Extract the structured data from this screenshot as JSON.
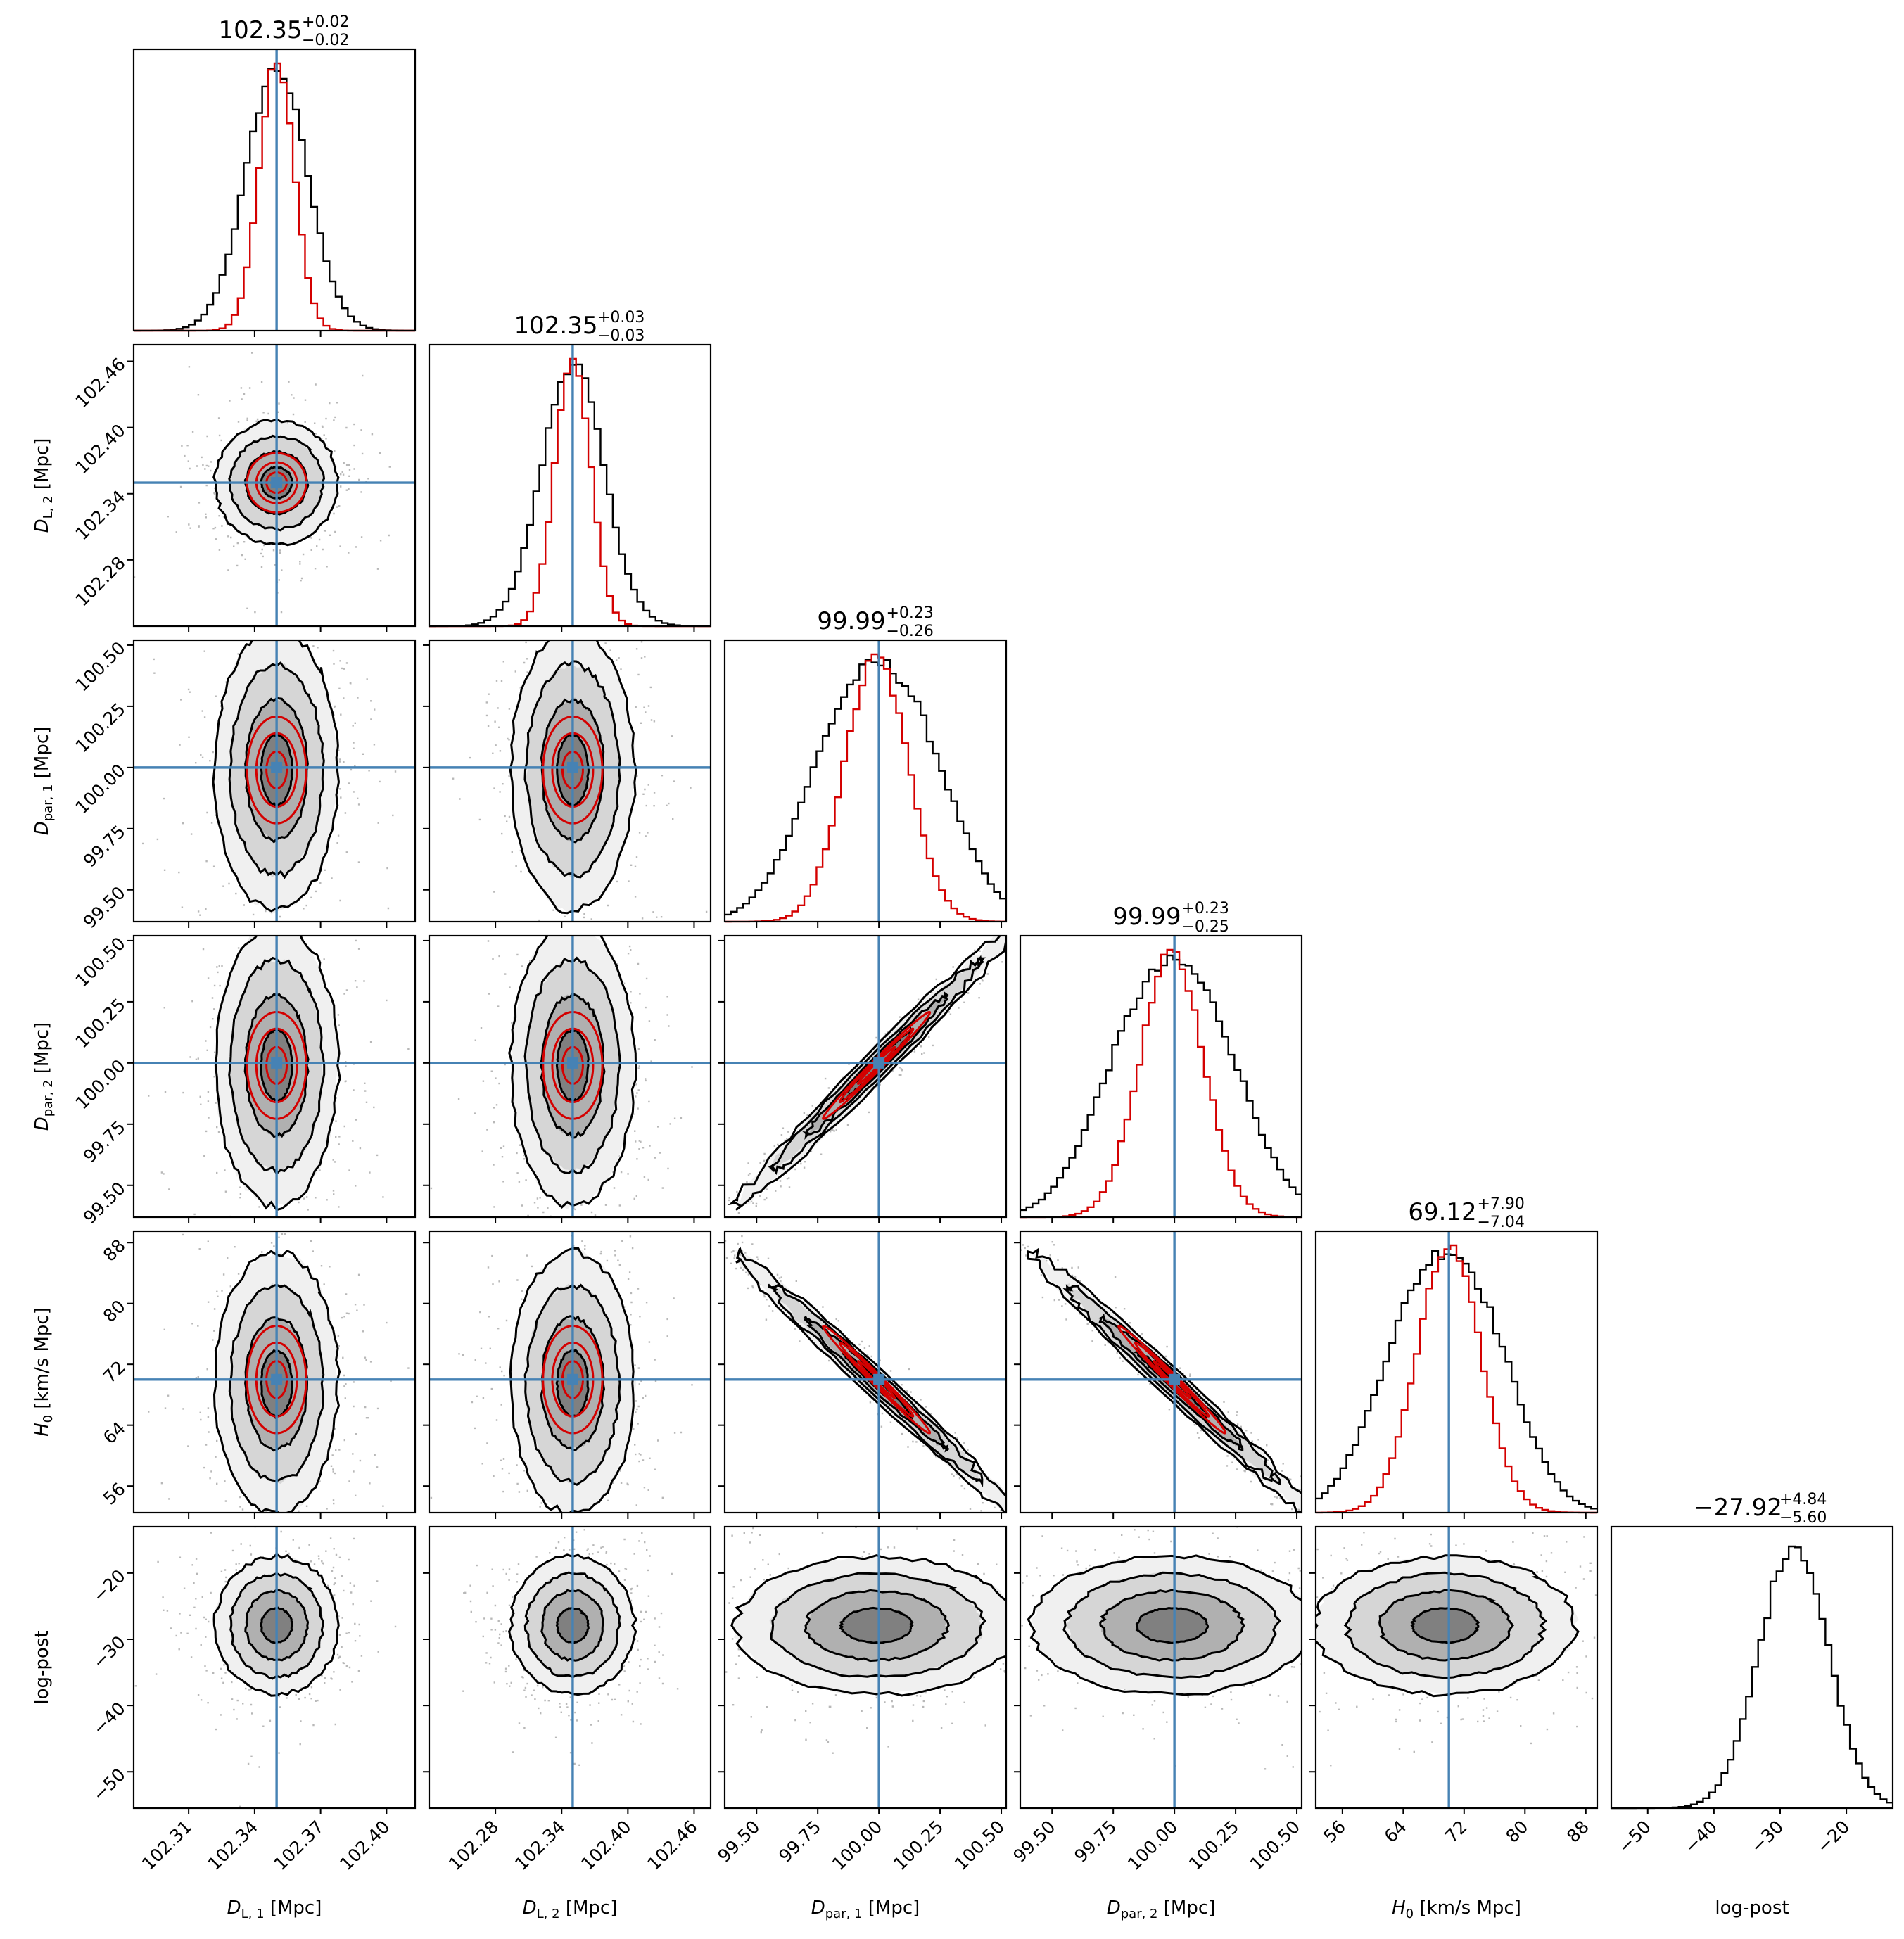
{
  "figure": {
    "kind": "corner-plot",
    "colors": {
      "samples_black": "#000000",
      "samples_red": "#d40000",
      "truth": "#4682b4",
      "fill_red": "#ff6b6b"
    }
  },
  "chart_data": {
    "type": "corner",
    "parameters": [
      {
        "key": "DL1",
        "label": "D_{L,1} [Mpc]",
        "label_parts": {
          "base": "D",
          "sub": "L, 1",
          "unit": " [Mpc]"
        },
        "range": [
          102.285,
          102.413
        ],
        "ticks": [
          102.31,
          102.34,
          102.37,
          102.4
        ],
        "tick_labels": [
          "102.31",
          "102.34",
          "102.37",
          "102.40"
        ],
        "truth": 102.35,
        "title": {
          "median": "102.35",
          "plus": "+0.02",
          "minus": "−0.02"
        },
        "hist_black": {
          "mean": 102.35,
          "sd": 0.014
        },
        "hist_red": {
          "mean": 102.35,
          "sd": 0.008
        }
      },
      {
        "key": "DL2",
        "label": "D_{L,2} [Mpc]",
        "label_parts": {
          "base": "D",
          "sub": "L, 2",
          "unit": " [Mpc]"
        },
        "range": [
          102.22,
          102.475
        ],
        "ticks": [
          102.28,
          102.34,
          102.4,
          102.46
        ],
        "tick_labels": [
          "102.28",
          "102.34",
          "102.40",
          "102.46"
        ],
        "truth": 102.35,
        "title": {
          "median": "102.35",
          "plus": "+0.03",
          "minus": "−0.03"
        },
        "hist_black": {
          "mean": 102.35,
          "sd": 0.028
        },
        "hist_red": {
          "mean": 102.35,
          "sd": 0.016
        }
      },
      {
        "key": "Dpar1",
        "label": "D_{par,1} [Mpc]",
        "label_parts": {
          "base": "D",
          "sub": "par, 1",
          "unit": " [Mpc]"
        },
        "range": [
          99.37,
          100.52
        ],
        "ticks": [
          99.5,
          99.75,
          100.0,
          100.25,
          100.5
        ],
        "tick_labels": [
          "99.50",
          "99.75",
          "100.00",
          "100.25",
          "100.50"
        ],
        "truth": 100.0,
        "title": {
          "median": "99.99",
          "plus": "+0.23",
          "minus": "−0.26"
        },
        "hist_black": {
          "mean": 99.99,
          "sd": 0.25,
          "bimodal": true
        },
        "hist_red": {
          "mean": 99.99,
          "sd": 0.13
        }
      },
      {
        "key": "Dpar2",
        "label": "D_{par,2} [Mpc]",
        "label_parts": {
          "base": "D",
          "sub": "par, 2",
          "unit": " [Mpc]"
        },
        "range": [
          99.37,
          100.52
        ],
        "ticks": [
          99.5,
          99.75,
          100.0,
          100.25,
          100.5
        ],
        "tick_labels": [
          "99.50",
          "99.75",
          "100.00",
          "100.25",
          "100.50"
        ],
        "truth": 100.0,
        "title": {
          "median": "99.99",
          "plus": "+0.23",
          "minus": "−0.25"
        },
        "hist_black": {
          "mean": 99.99,
          "sd": 0.25,
          "bimodal": true
        },
        "hist_red": {
          "mean": 99.99,
          "sd": 0.13
        }
      },
      {
        "key": "H0",
        "label": "H_0 [km/(s Mpc)]",
        "label_parts": {
          "base": "H",
          "sub": "0",
          "unit_num": "km",
          "unit_den": "s Mpc"
        },
        "range": [
          52.5,
          89.5
        ],
        "ticks": [
          56,
          64,
          72,
          80,
          88
        ],
        "tick_labels": [
          "56",
          "64",
          "72",
          "80",
          "88"
        ],
        "truth": 70,
        "title": {
          "median": "69.12",
          "plus": "+7.90",
          "minus": "−7.04"
        },
        "hist_black": {
          "mean": 69.5,
          "sd": 7.5,
          "bimodal": true
        },
        "hist_red": {
          "mean": 70,
          "sd": 4.2
        }
      },
      {
        "key": "logpost",
        "label": "log-post",
        "label_parts": {
          "base": "log-post"
        },
        "range": [
          -55.5,
          -13
        ],
        "ticks": [
          -50,
          -40,
          -30,
          -20
        ],
        "tick_labels": [
          "−50",
          "−40",
          "−30",
          "−20"
        ],
        "truth": null,
        "title": {
          "median": "−27.92",
          "plus": "+4.84",
          "minus": "−5.60"
        },
        "hist_black": {
          "mean": -27.9,
          "sd": 5.2
        },
        "hist_red": null
      }
    ],
    "correlations": {
      "Dpar1|Dpar2": 0.99,
      "Dpar1|H0": -0.99,
      "Dpar2|H0": -0.99
    }
  }
}
